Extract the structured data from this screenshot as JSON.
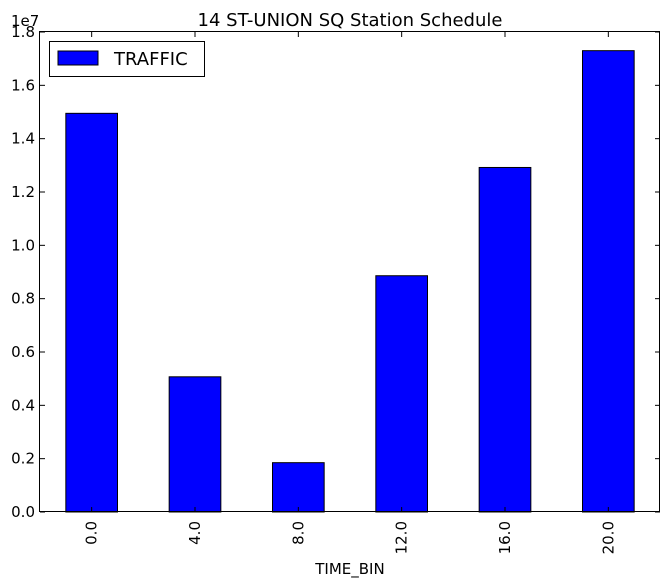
{
  "chart_data": {
    "type": "bar",
    "title": "14 ST-UNION SQ Station Schedule",
    "xlabel": "TIME_BIN",
    "ylabel": "",
    "y_offset_label": "1e7",
    "categories": [
      "0.0",
      "4.0",
      "8.0",
      "12.0",
      "16.0",
      "20.0"
    ],
    "series": [
      {
        "name": "TRAFFIC",
        "values": [
          14950000,
          5070000,
          1850000,
          8860000,
          12920000,
          17300000
        ],
        "color": "#0000ff"
      }
    ],
    "ylim": [
      0,
      18000000
    ],
    "yticks": [
      {
        "value": 0,
        "label": "0.0"
      },
      {
        "value": 2000000,
        "label": "0.2"
      },
      {
        "value": 4000000,
        "label": "0.4"
      },
      {
        "value": 6000000,
        "label": "0.6"
      },
      {
        "value": 8000000,
        "label": "0.8"
      },
      {
        "value": 10000000,
        "label": "1.0"
      },
      {
        "value": 12000000,
        "label": "1.2"
      },
      {
        "value": 14000000,
        "label": "1.4"
      },
      {
        "value": 16000000,
        "label": "1.6"
      },
      {
        "value": 18000000,
        "label": "1.8"
      }
    ],
    "grid": false,
    "legend_position": "top-left"
  }
}
